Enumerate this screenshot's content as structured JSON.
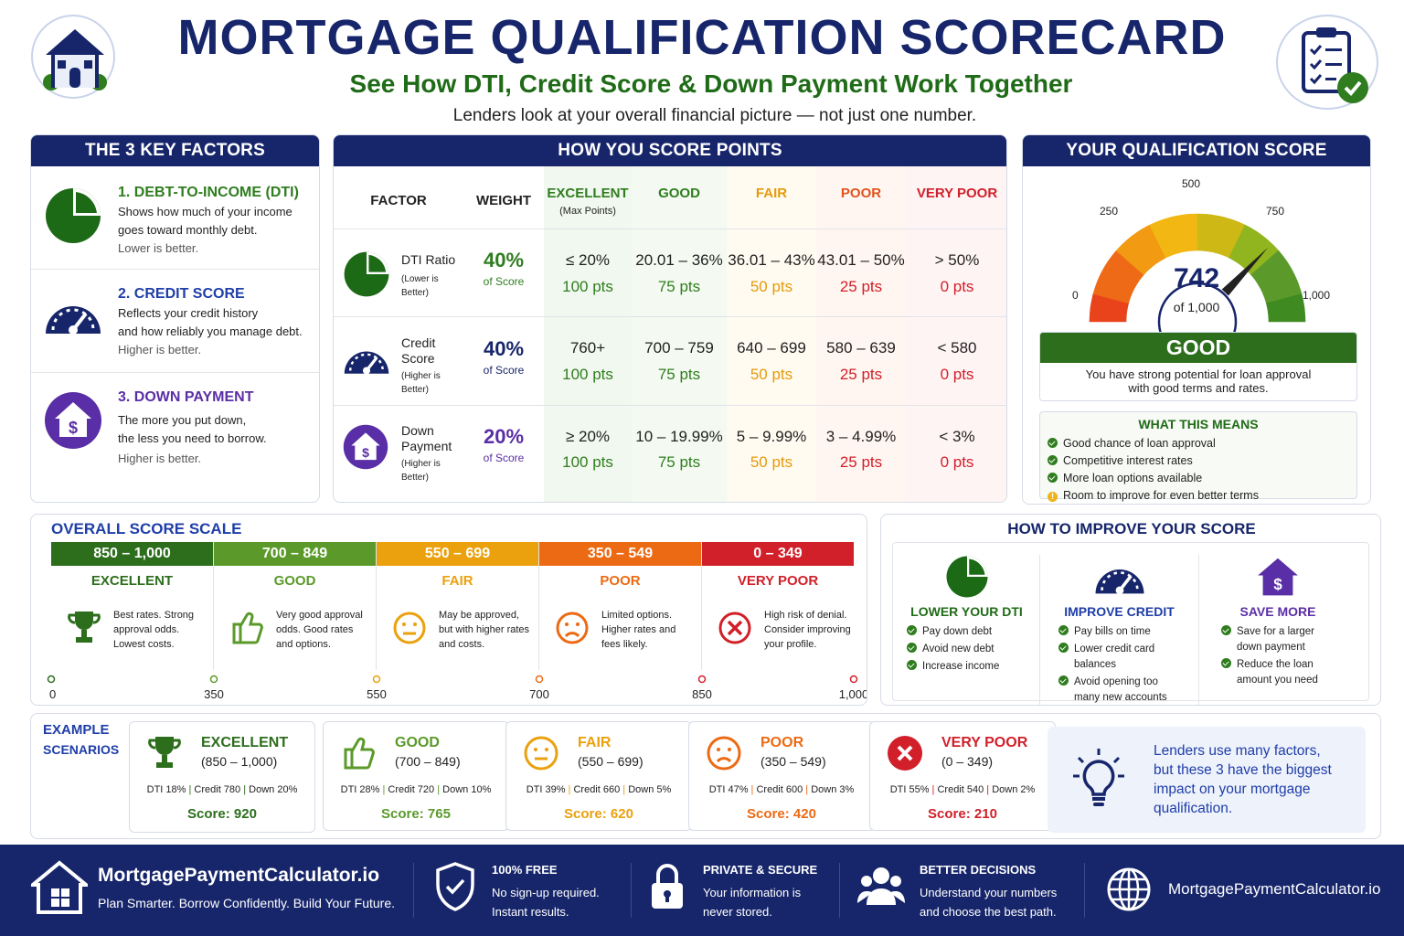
{
  "header": {
    "title": "MORTGAGE QUALIFICATION SCORECARD",
    "subtitle": "See How DTI, Credit Score & Down Payment Work Together",
    "tagline": "Lenders look at your overall financial picture — not just one number."
  },
  "colors": {
    "navy": "#17266b",
    "green": "#2f7d1f",
    "orange": "#e59a0a",
    "red": "#e0531c",
    "dark_red": "#d1202a"
  },
  "key_factors": {
    "title": "THE 3 KEY FACTORS",
    "items": [
      {
        "title": "1. DEBT-TO-INCOME (DTI)",
        "line1": "Shows how much of your income",
        "line2": "goes toward monthly debt.",
        "note": "Lower is better.",
        "icon": "pie-chart-icon"
      },
      {
        "title": "2. CREDIT SCORE",
        "line1": "Reflects your credit history",
        "line2": "and how reliably you manage debt.",
        "note": "Higher is better.",
        "icon": "speedometer-icon"
      },
      {
        "title": "3. DOWN PAYMENT",
        "line1": "The more you put down,",
        "line2": "the less you need to borrow.",
        "note": "Higher is better.",
        "icon": "house-dollar-icon"
      }
    ]
  },
  "points": {
    "title": "HOW YOU SCORE POINTS",
    "headers": {
      "factor": "FACTOR",
      "weight": "WEIGHT",
      "excellent": "EXCELLENT",
      "excellent_sub": "(Max Points)",
      "good": "GOOD",
      "fair": "FAIR",
      "poor": "POOR",
      "very_poor": "VERY POOR"
    },
    "rows": [
      {
        "name": "DTI Ratio",
        "sub1": "(Lower is",
        "sub2": "Better)",
        "weight": "40%",
        "weight_sub": "of Score",
        "ranges": [
          "≤ 20%",
          "20.01 – 36%",
          "36.01 – 43%",
          "43.01 – 50%",
          "> 50%"
        ],
        "pts": [
          "100 pts",
          "75 pts",
          "50 pts",
          "25 pts",
          "0 pts"
        ]
      },
      {
        "name": "Credit",
        "name2": "Score",
        "sub1": "(Higher is",
        "sub2": "Better)",
        "weight": "40%",
        "weight_sub": "of Score",
        "ranges": [
          "760+",
          "700 – 759",
          "640 – 699",
          "580 – 639",
          "< 580"
        ],
        "pts": [
          "100 pts",
          "75 pts",
          "50 pts",
          "25 pts",
          "0 pts"
        ]
      },
      {
        "name": "Down",
        "name2": "Payment",
        "sub1": "(Higher is",
        "sub2": "Better)",
        "weight": "20%",
        "weight_sub": "of Score",
        "ranges": [
          "≥ 20%",
          "10 – 19.99%",
          "5 – 9.99%",
          "3 – 4.99%",
          "< 3%"
        ],
        "pts": [
          "100 pts",
          "75 pts",
          "50 pts",
          "25 pts",
          "0 pts"
        ]
      }
    ]
  },
  "qual": {
    "title": "YOUR QUALIFICATION SCORE",
    "gauge_labels": [
      "0",
      "250",
      "500",
      "750",
      "1,000"
    ],
    "gauge_min": 0,
    "gauge_max": 1000,
    "score": 742,
    "score_label": "742",
    "of_label": "of 1,000",
    "rating": "GOOD",
    "rating_desc1": "You have strong potential for loan approval",
    "rating_desc2": "with good terms and rates.",
    "means_title": "WHAT THIS MEANS",
    "means": [
      "Good chance of loan approval",
      "Competitive interest rates",
      "More loan options available",
      "Room to improve for even better terms"
    ]
  },
  "scale": {
    "title": "OVERALL SCORE SCALE",
    "bands": [
      {
        "range": "850 – 1,000",
        "name": "EXCELLENT",
        "l1": "Best rates. Strong",
        "l2": "approval odds.",
        "l3": "Lowest costs.",
        "color": "#2c6e1c",
        "icon": "trophy-icon"
      },
      {
        "range": "700 – 849",
        "name": "GOOD",
        "l1": "Very good approval",
        "l2": "odds. Good rates",
        "l3": "and options.",
        "color": "#5b9a2a",
        "icon": "thumbs-up-icon"
      },
      {
        "range": "550 – 699",
        "name": "FAIR",
        "l1": "May be approved,",
        "l2": "but with higher rates",
        "l3": "and costs.",
        "color": "#eaa10d",
        "icon": "neutral-face-icon"
      },
      {
        "range": "350 – 549",
        "name": "POOR",
        "l1": "Limited options.",
        "l2": "Higher rates and",
        "l3": "fees likely.",
        "color": "#ec6a14",
        "icon": "sad-face-icon"
      },
      {
        "range": "0 – 349",
        "name": "VERY POOR",
        "l1": "High risk of denial.",
        "l2": "Consider improving",
        "l3": "your profile.",
        "color": "#d1202a",
        "icon": "x-circle-icon"
      }
    ],
    "axis": [
      "0",
      "350",
      "550",
      "700",
      "850",
      "1,000"
    ]
  },
  "improve": {
    "title": "HOW TO IMPROVE YOUR SCORE",
    "cols": [
      {
        "title": "LOWER YOUR DTI",
        "items": [
          "Pay down debt",
          "Avoid new debt",
          "Increase income"
        ]
      },
      {
        "title": "IMPROVE CREDIT",
        "items": [
          "Pay bills on time",
          "Lower credit card",
          "balances",
          "Avoid opening too",
          "many new accounts"
        ]
      },
      {
        "title": "SAVE MORE",
        "items": [
          "Save for a larger",
          "down payment",
          "Reduce the loan",
          "amount you need"
        ]
      }
    ]
  },
  "examples": {
    "label1": "EXAMPLE",
    "label2": "SCENARIOS",
    "items": [
      {
        "name": "EXCELLENT",
        "range": "(850 – 1,000)",
        "dti": "DTI 18%",
        "credit": "Credit 780",
        "down": "Down 20%",
        "score": "Score: 920"
      },
      {
        "name": "GOOD",
        "range": "(700 – 849)",
        "dti": "DTI 28%",
        "credit": "Credit 720",
        "down": "Down 10%",
        "score": "Score: 765"
      },
      {
        "name": "FAIR",
        "range": "(550 – 699)",
        "dti": "DTI 39%",
        "credit": "Credit 660",
        "down": "Down 5%",
        "score": "Score: 620"
      },
      {
        "name": "POOR",
        "range": "(350 – 549)",
        "dti": "DTI 47%",
        "credit": "Credit 600",
        "down": "Down 3%",
        "score": "Score: 420"
      },
      {
        "name": "VERY POOR",
        "range": "(0 – 349)",
        "dti": "DTI 55%",
        "credit": "Credit 540",
        "down": "Down 2%",
        "score": "Score: 210"
      }
    ],
    "note1": "Lenders use many factors,",
    "note2": "but these 3 have the biggest",
    "note3": "impact on your mortgage",
    "note4": "qualification."
  },
  "footer": {
    "brand": "MortgagePaymentCalculator.io",
    "slogan": "Plan Smarter. Borrow Confidently. Build Your Future.",
    "f1_title": "100% FREE",
    "f1_l1": "No sign-up required.",
    "f1_l2": "Instant results.",
    "f2_title": "PRIVATE & SECURE",
    "f2_l1": "Your information is",
    "f2_l2": "never stored.",
    "f3_title": "BETTER DECISIONS",
    "f3_l1": "Understand your numbers",
    "f3_l2": "and choose the best path.",
    "site": "MortgagePaymentCalculator.io"
  }
}
